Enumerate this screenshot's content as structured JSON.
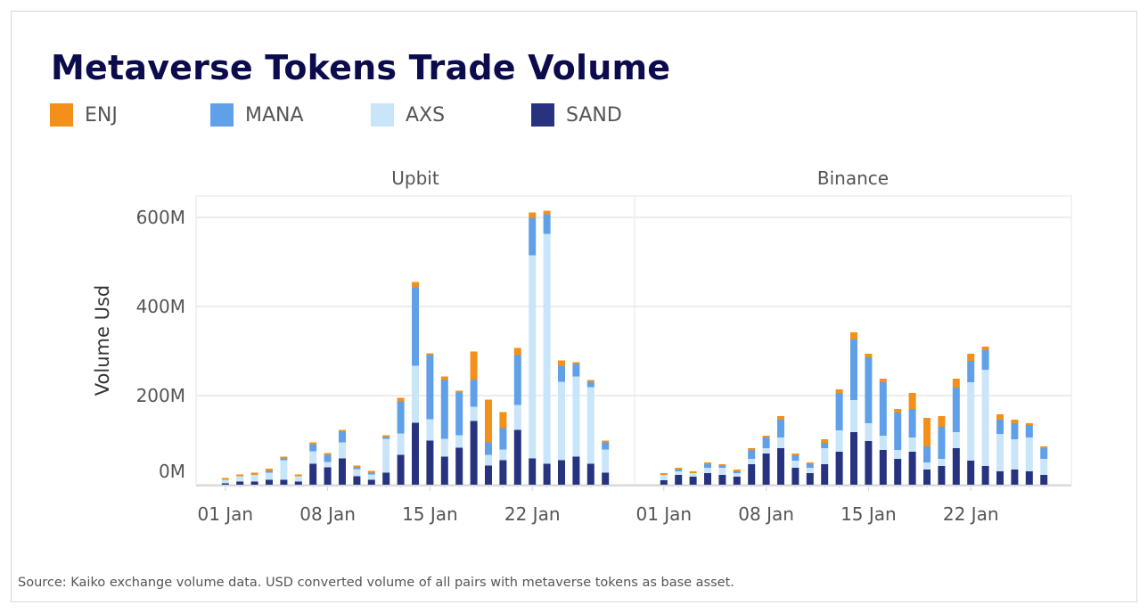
{
  "title": "Metaverse Tokens Trade Volume",
  "source": "Source: Kaiko exchange volume data. USD converted volume of all pairs with metaverse tokens as base asset.",
  "colors": {
    "ENJ": "#f39019",
    "MANA": "#60a0e8",
    "AXS": "#c9e5f9",
    "SAND": "#27337f"
  },
  "legend": [
    "ENJ",
    "MANA",
    "AXS",
    "SAND"
  ],
  "chart_data": [
    {
      "type": "bar",
      "stacked": true,
      "title": "Upbit",
      "ylabel": "Volume Usd",
      "xlabel": "",
      "ylim": [
        0,
        650
      ],
      "yticks": [
        "0M",
        "200M",
        "400M",
        "600M"
      ],
      "ytick_values": [
        0,
        200,
        400,
        600
      ],
      "xticks": [
        "01 Jan",
        "08 Jan",
        "15 Jan",
        "22 Jan"
      ],
      "xtick_days": [
        1,
        8,
        15,
        22
      ],
      "grid": true,
      "legend_placement": "top-left",
      "categories": [
        "01 Jan",
        "02 Jan",
        "03 Jan",
        "04 Jan",
        "05 Jan",
        "06 Jan",
        "07 Jan",
        "08 Jan",
        "09 Jan",
        "10 Jan",
        "11 Jan",
        "12 Jan",
        "13 Jan",
        "14 Jan",
        "15 Jan",
        "16 Jan",
        "17 Jan",
        "18 Jan",
        "19 Jan",
        "20 Jan",
        "21 Jan",
        "22 Jan",
        "23 Jan",
        "24 Jan",
        "25 Jan",
        "26 Jan",
        "27 Jan"
      ],
      "series": [
        {
          "name": "SAND",
          "values": [
            3,
            7,
            7,
            11,
            11,
            7,
            47,
            39,
            59,
            19,
            11,
            27,
            67,
            139,
            99,
            63,
            83,
            143,
            43,
            55,
            123,
            59,
            47,
            55,
            63,
            47,
            27
          ]
        },
        {
          "name": "AXS",
          "values": [
            8,
            12,
            15,
            16,
            44,
            12,
            28,
            12,
            36,
            16,
            12,
            76,
            48,
            128,
            48,
            40,
            28,
            32,
            24,
            24,
            56,
            456,
            516,
            176,
            180,
            172,
            52
          ]
        },
        {
          "name": "MANA",
          "values": [
            0,
            0,
            0,
            4,
            4,
            0,
            16,
            16,
            24,
            4,
            4,
            4,
            72,
            176,
            144,
            132,
            96,
            60,
            28,
            48,
            112,
            84,
            44,
            36,
            28,
            12,
            16
          ]
        },
        {
          "name": "ENJ",
          "values": [
            4,
            4,
            5,
            5,
            4,
            4,
            4,
            4,
            4,
            4,
            4,
            4,
            8,
            12,
            4,
            8,
            4,
            64,
            96,
            36,
            16,
            12,
            8,
            12,
            4,
            4,
            4
          ]
        }
      ]
    },
    {
      "type": "bar",
      "stacked": true,
      "title": "Binance",
      "ylim": [
        0,
        650
      ],
      "xticks": [
        "01 Jan",
        "08 Jan",
        "15 Jan",
        "22 Jan"
      ],
      "xtick_days": [
        1,
        8,
        15,
        22
      ],
      "grid": true,
      "categories": [
        "01 Jan",
        "02 Jan",
        "03 Jan",
        "04 Jan",
        "05 Jan",
        "06 Jan",
        "07 Jan",
        "08 Jan",
        "09 Jan",
        "10 Jan",
        "11 Jan",
        "12 Jan",
        "13 Jan",
        "14 Jan",
        "15 Jan",
        "16 Jan",
        "17 Jan",
        "18 Jan",
        "19 Jan",
        "20 Jan",
        "21 Jan",
        "22 Jan",
        "23 Jan",
        "24 Jan",
        "25 Jan",
        "26 Jan",
        "27 Jan"
      ],
      "series": [
        {
          "name": "SAND",
          "values": [
            10,
            22,
            18,
            26,
            22,
            18,
            46,
            70,
            82,
            38,
            26,
            46,
            74,
            118,
            98,
            78,
            58,
            74,
            34,
            42,
            82,
            54,
            42,
            30,
            34,
            30,
            22
          ]
        },
        {
          "name": "AXS",
          "values": [
            12,
            8,
            8,
            12,
            16,
            8,
            12,
            12,
            24,
            16,
            12,
            36,
            48,
            72,
            40,
            32,
            20,
            32,
            16,
            16,
            36,
            176,
            216,
            84,
            68,
            76,
            36
          ]
        },
        {
          "name": "MANA",
          "values": [
            0,
            4,
            0,
            8,
            4,
            4,
            20,
            24,
            40,
            12,
            8,
            12,
            84,
            136,
            148,
            120,
            84,
            64,
            36,
            72,
            100,
            48,
            44,
            32,
            36,
            28,
            24
          ]
        },
        {
          "name": "ENJ",
          "values": [
            4,
            4,
            4,
            4,
            4,
            4,
            4,
            4,
            8,
            4,
            4,
            8,
            8,
            16,
            8,
            8,
            8,
            36,
            64,
            24,
            20,
            16,
            8,
            12,
            8,
            4,
            4
          ]
        }
      ]
    }
  ]
}
